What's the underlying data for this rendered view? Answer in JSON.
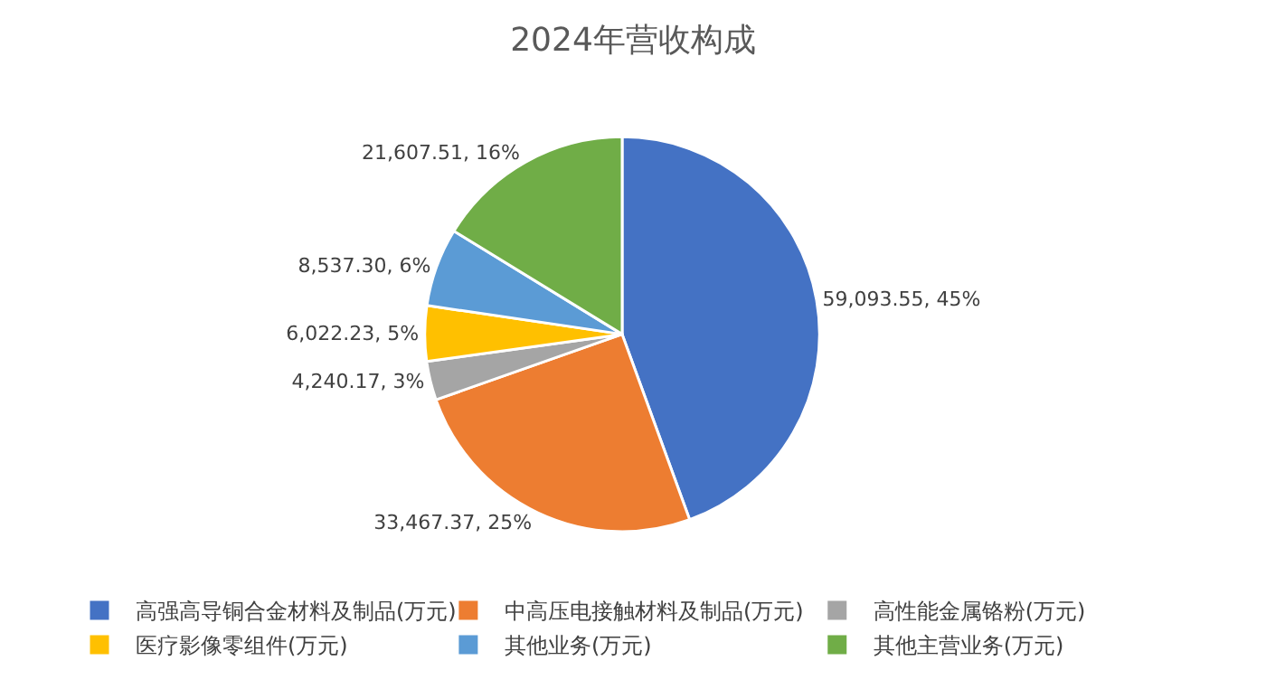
{
  "chart_data": {
    "type": "pie",
    "title": "2024年营收构成",
    "categories": [
      "高强高导铜合金材料及制品(万元)",
      "中高压电接触材料及制品(万元)",
      "高性能金属铬粉(万元)",
      "医疗影像零组件(万元)",
      "其他业务(万元)",
      "其他主营业务(万元)"
    ],
    "values": [
      59093.55,
      33467.37,
      4240.17,
      6022.23,
      8537.3,
      21607.51
    ],
    "value_labels": [
      "59,093.55, 45%",
      "33,467.37, 25%",
      "4,240.17, 3%",
      "6,022.23, 5%",
      "8,537.30, 6%",
      "21,607.51, 16%"
    ],
    "colors": [
      "#4472c4",
      "#ed7d31",
      "#a5a5a5",
      "#ffc000",
      "#5b9bd5",
      "#70ad47"
    ],
    "legend": "bottom"
  }
}
